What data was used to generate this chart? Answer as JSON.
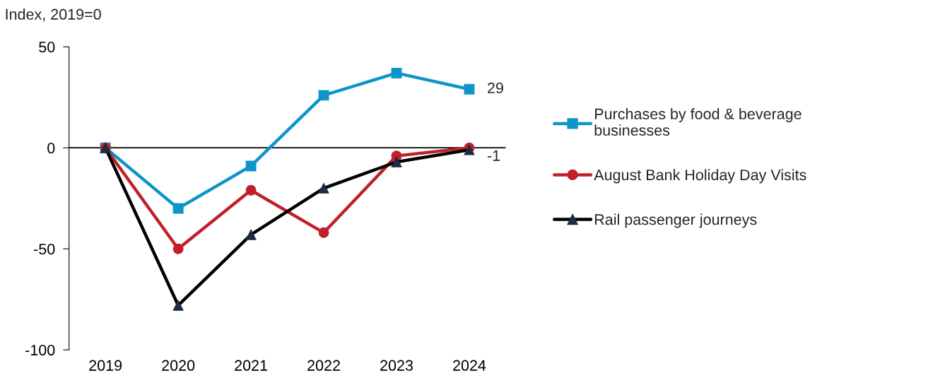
{
  "chart_data": {
    "type": "line",
    "ylabel": "Index, 2019=0",
    "categories": [
      "2019",
      "2020",
      "2021",
      "2022",
      "2023",
      "2024"
    ],
    "series": [
      {
        "name": "Purchases by food & beverage\nbusinesses",
        "color": "#0e95c8",
        "marker": "square",
        "values": [
          0,
          -30,
          -9,
          26,
          37,
          29
        ]
      },
      {
        "name": "August Bank Holiday Day Visits",
        "color": "#c0202a",
        "marker": "circle",
        "values": [
          0,
          -50,
          -21,
          -42,
          -4,
          0
        ]
      },
      {
        "name": "Rail passenger journeys",
        "color": "#000000",
        "marker": "triangle",
        "values": [
          0,
          -78,
          -43,
          -20,
          -7,
          -1
        ]
      }
    ],
    "ylim": [
      -100,
      50
    ],
    "yticks": [
      {
        "value": -100,
        "label": "-100"
      },
      {
        "value": -50,
        "label": "-50"
      },
      0,
      50
    ],
    "ref_lines": [
      {
        "axis": "y",
        "value": 0,
        "color": "#000000"
      }
    ],
    "annotations": [
      {
        "text": "29",
        "x": "2024",
        "y": 29
      },
      {
        "text": "-1",
        "x": "2024",
        "y": -1
      }
    ],
    "grid": false,
    "legend": "right",
    "line_style": "solid"
  }
}
